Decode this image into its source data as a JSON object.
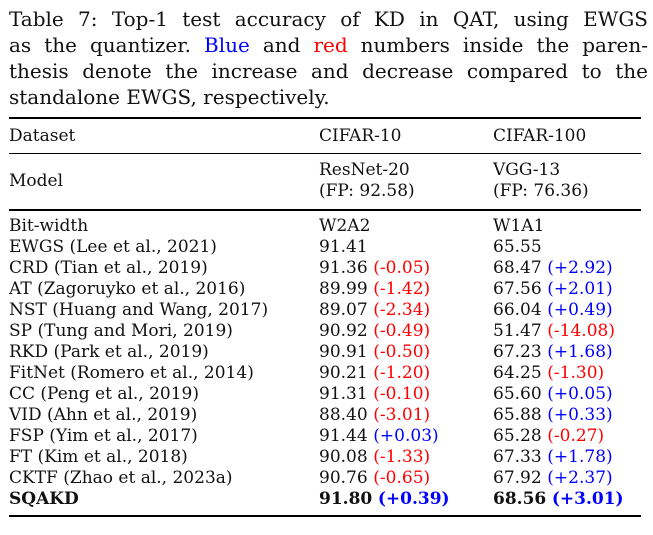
{
  "colors": {
    "accent_blue": "#0000ff",
    "accent_red": "#ff0000",
    "text": "#111111"
  },
  "caption": {
    "line1": "Table 7: Top-1 test accuracy of KD in QAT, using EWGS",
    "line2_pre": "as the quantizer. ",
    "line2_blue": "Blue",
    "line2_mid": " and ",
    "line2_red": "red",
    "line2_post": " numbers inside the paren-",
    "line3": "thesis denote the increase and decrease compared to the",
    "line4": "standalone EWGS, respectively."
  },
  "table": {
    "header": {
      "dataset_label": "Dataset",
      "dataset_c10": "CIFAR-10",
      "dataset_c100": "CIFAR-100",
      "model_label": "Model",
      "model_c10_line1": "ResNet-20",
      "model_c10_line2": "(FP: 92.58)",
      "model_c100_line1": "VGG-13",
      "model_c100_line2": "(FP: 76.36)"
    },
    "rows": [
      {
        "method": "Bit-width",
        "c10": "W2A2",
        "c10_delta": "",
        "c100": "W1A1",
        "c100_delta": ""
      },
      {
        "method": "EWGS (Lee et al., 2021)",
        "c10": "91.41",
        "c10_delta": "",
        "c100": "65.55",
        "c100_delta": ""
      },
      {
        "method": "CRD (Tian et al., 2019)",
        "c10": "91.36",
        "c10_delta": "(-0.05)",
        "c100": "68.47",
        "c100_delta": "(+2.92)"
      },
      {
        "method": "AT (Zagoruyko et al., 2016)",
        "c10": "89.99",
        "c10_delta": "(-1.42)",
        "c100": "67.56",
        "c100_delta": "(+2.01)"
      },
      {
        "method": "NST (Huang and Wang, 2017)",
        "c10": "89.07",
        "c10_delta": "(-2.34)",
        "c100": "66.04",
        "c100_delta": "(+0.49)"
      },
      {
        "method": "SP (Tung and Mori, 2019)",
        "c10": "90.92",
        "c10_delta": "(-0.49)",
        "c100": "51.47",
        "c100_delta": "(-14.08)"
      },
      {
        "method": "RKD (Park et al., 2019)",
        "c10": "90.91",
        "c10_delta": "(-0.50)",
        "c100": "67.23",
        "c100_delta": "(+1.68)"
      },
      {
        "method": "FitNet (Romero et al., 2014)",
        "c10": "90.21",
        "c10_delta": "(-1.20)",
        "c100": "64.25",
        "c100_delta": "(-1.30)"
      },
      {
        "method": "CC (Peng et al., 2019)",
        "c10": "91.31",
        "c10_delta": "(-0.10)",
        "c100": "65.60",
        "c100_delta": "(+0.05)"
      },
      {
        "method": "VID (Ahn et al., 2019)",
        "c10": "88.40",
        "c10_delta": "(-3.01)",
        "c100": "65.88",
        "c100_delta": "(+0.33)"
      },
      {
        "method": "FSP (Yim et al., 2017)",
        "c10": "91.44",
        "c10_delta": "(+0.03)",
        "c100": "65.28",
        "c100_delta": "(-0.27)"
      },
      {
        "method": "FT (Kim et al., 2018)",
        "c10": "90.08",
        "c10_delta": "(-1.33)",
        "c100": "67.33",
        "c100_delta": "(+1.78)"
      },
      {
        "method": "CKTF (Zhao et al., 2023a)",
        "c10": "90.76",
        "c10_delta": "(-0.65)",
        "c100": "67.92",
        "c100_delta": "(+2.37)"
      },
      {
        "method": "SQAKD",
        "c10": "91.80",
        "c10_delta": "(+0.39)",
        "c100": "68.56",
        "c100_delta": "(+3.01)"
      }
    ]
  }
}
